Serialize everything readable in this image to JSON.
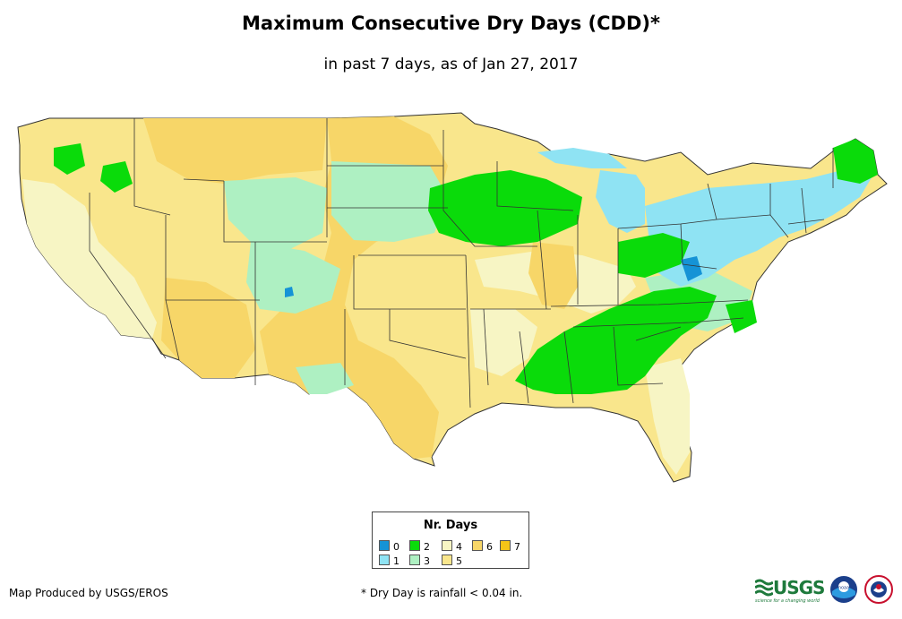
{
  "header": {
    "title": "Maximum Consecutive Dry Days (CDD)*",
    "subtitle": "in past 7 days, as of Jan 27, 2017"
  },
  "legend": {
    "title": "Nr. Days",
    "items": [
      {
        "label": "0",
        "color": "#1593d6"
      },
      {
        "label": "1",
        "color": "#8fe3f3"
      },
      {
        "label": "2",
        "color": "#0adb0a"
      },
      {
        "label": "3",
        "color": "#aef0c2"
      },
      {
        "label": "4",
        "color": "#f7f5c4"
      },
      {
        "label": "5",
        "color": "#f9e68c"
      },
      {
        "label": "6",
        "color": "#f7d668"
      },
      {
        "label": "7",
        "color": "#f5c518"
      }
    ]
  },
  "footer": {
    "credit": "Map Produced by USGS/EROS",
    "note": "* Dry Day is rainfall < 0.04 in."
  },
  "logos": {
    "usgs": "USGS",
    "usgs_tagline": "science for a changing world",
    "noaa": "noaa",
    "nws": "national-weather-service"
  },
  "icons": [
    "usgs-logo-icon",
    "noaa-logo-icon",
    "nws-logo-icon"
  ]
}
